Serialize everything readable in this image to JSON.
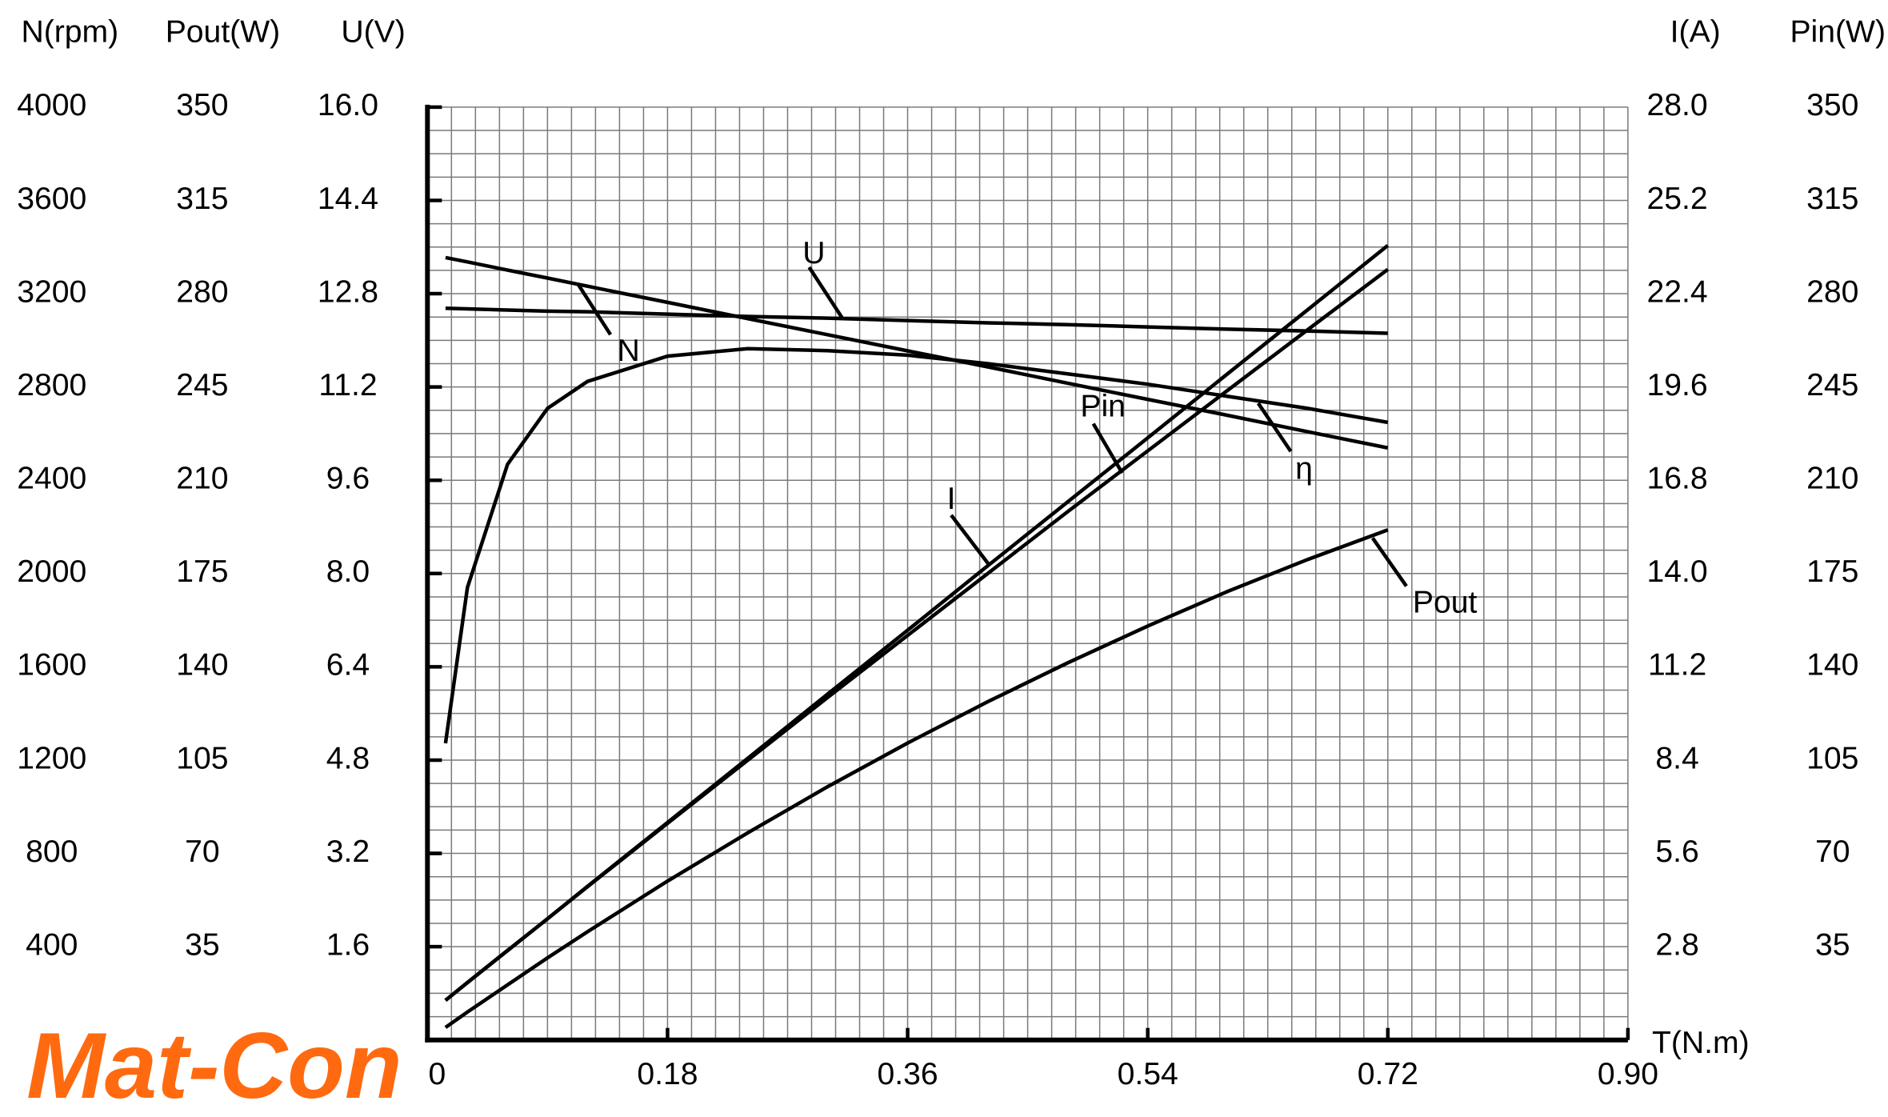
{
  "logo": "Mat-Con",
  "chart_data": {
    "type": "line",
    "x_label": "T(N.m)",
    "xlim": [
      0,
      0.9
    ],
    "xticks": [
      0,
      0.18,
      0.36,
      0.54,
      0.72,
      {
        "value": 0.9,
        "label": "0.90"
      }
    ],
    "axes": {
      "y": {
        "label": "N(rpm)",
        "side": "left",
        "lim": [
          0,
          4000
        ],
        "ticks": [
          400,
          800,
          1200,
          1600,
          2000,
          2400,
          2800,
          3200,
          3600,
          4000
        ]
      },
      "y2": {
        "label": "Pout(W)",
        "side": "left",
        "lim": [
          0,
          350
        ],
        "ticks": [
          35,
          70,
          105,
          140,
          175,
          210,
          245,
          280,
          315,
          350
        ]
      },
      "y3": {
        "label": "U(V)",
        "side": "left",
        "lim": [
          0,
          16
        ],
        "ticks": [
          1.6,
          3.2,
          4.8,
          6.4,
          {
            "value": 8,
            "label": "8.0"
          },
          9.6,
          11.2,
          12.8,
          14.4,
          {
            "value": 16,
            "label": "16.0"
          }
        ]
      },
      "y4": {
        "label": "I(A)",
        "side": "right",
        "lim": [
          0,
          28
        ],
        "ticks": [
          2.8,
          5.6,
          8.4,
          11.2,
          {
            "value": 14,
            "label": "14.0"
          },
          16.8,
          19.6,
          22.4,
          25.2,
          {
            "value": 28,
            "label": "28.0"
          }
        ]
      },
      "y5": {
        "label": "Pin(W)",
        "side": "right",
        "lim": [
          0,
          350
        ],
        "ticks": [
          35,
          70,
          105,
          140,
          175,
          210,
          245,
          280,
          315,
          350
        ]
      },
      "y6": {
        "lim": [
          0,
          100
        ]
      }
    },
    "grid": {
      "x_minor": 10,
      "y_minor": 4
    },
    "x": [
      0.0135,
      0.03,
      0.06,
      0.09,
      0.12,
      0.18,
      0.24,
      0.3,
      0.36,
      0.42,
      0.48,
      0.54,
      0.6,
      0.66,
      0.72
    ],
    "series": [
      {
        "name": "N",
        "axis": "y",
        "color": "#000000",
        "values": [
          3355,
          3336,
          3301,
          3267,
          3232,
          3163,
          3093,
          3024,
          2955,
          2886,
          2816,
          2747,
          2678,
          2608,
          2539
        ]
      },
      {
        "name": "U",
        "axis": "y3",
        "color": "#000000",
        "values": [
          12.55,
          12.54,
          12.52,
          12.5,
          12.49,
          12.45,
          12.41,
          12.38,
          12.34,
          12.3,
          12.27,
          12.23,
          12.19,
          12.16,
          12.12
        ]
      },
      {
        "name": "Pin",
        "axis": "y5",
        "color": "#000000",
        "values": [
          14.9,
          21.6,
          33.6,
          45.5,
          57.5,
          81.3,
          104.9,
          128.5,
          151.8,
          175.0,
          198.2,
          221.0,
          243.8,
          266.5,
          289.1
        ]
      },
      {
        "name": "I",
        "axis": "y4",
        "color": "#000000",
        "values": [
          1.19,
          1.72,
          2.68,
          3.64,
          4.61,
          6.53,
          8.45,
          10.38,
          12.3,
          14.23,
          16.15,
          18.07,
          20.0,
          21.92,
          23.85
        ]
      },
      {
        "name": "η",
        "axis": "y6",
        "color": "#000000",
        "values": [
          31.8,
          48.5,
          61.7,
          67.7,
          70.6,
          73.3,
          74.1,
          73.9,
          73.4,
          72.5,
          71.4,
          70.3,
          69.0,
          67.7,
          66.2
        ]
      },
      {
        "name": "Pout",
        "axis": "y2",
        "color": "#000000",
        "values": [
          4.7,
          10.5,
          20.7,
          30.8,
          40.6,
          59.6,
          77.7,
          95.0,
          111.4,
          126.9,
          141.5,
          155.3,
          168.3,
          180.3,
          191.4
        ]
      }
    ]
  }
}
